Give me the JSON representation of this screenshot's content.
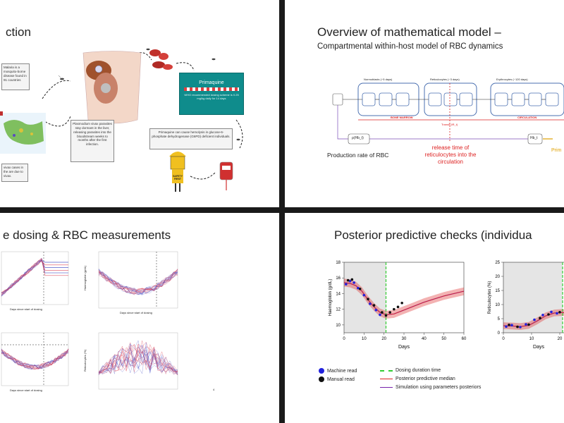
{
  "slide1": {
    "title": "ction",
    "box_malaria": "Malaria is a mosquito-borne disease found in 91 countries",
    "box_plasmodium": "Plasmodium vivax parasites stay dormant in the liver, releasing parasites into the bloodstream weeks to months after the first infection.",
    "box_cases": "vivax cases in the are due to vivax.",
    "primaquine_label": "Primaquine",
    "primaquine_desc": "WHO recommended dosing scheme is 0.25 mg/kg daily for 14 days",
    "box_g6pd": "Primaquine can cause hemolysis in glucose-6-phosphate dehydrogenase (G6PD) deficient individuals.",
    "safety_text": "SAFETY FIRST"
  },
  "slide2": {
    "title": "Overview of mathematical model –",
    "subtitle": "Compartmental within-host model of RBC dynamics",
    "normoblasts": "Normoblasts (~5 days)",
    "reticulocytes": "Reticulocytes (~3 days)",
    "erythrocytes": "Erythrocytes (~120 days)",
    "bone_marrow": "BONE MARROW",
    "circulation": "CIRCULATION",
    "transit": "Transit (tR_t)",
    "prod_node": "ρ(Hb_t)",
    "hb_node": "Hb_t",
    "production_rate": "Production rate of RBC",
    "release_note": "release time of reticulocytes into the circulation",
    "prima_note": "Prim"
  },
  "slide3": {
    "title": "e dosing & RBC measurements",
    "xlabel_a": "Days since start of dosing",
    "xlabel_b": "Days since start of dosing",
    "xlabel_c": "Days since start of dosing",
    "ylabel_b": "Haemoglobin (g/dL)",
    "ylabel_d": "Reticulocytes (%)",
    "page_num": "4"
  },
  "slide4": {
    "title": "Posterior predictive checks (individua",
    "legend": {
      "machine": "Machine read",
      "manual": "Manual read",
      "dosing": "Dosing duration time",
      "median": "Posterior predictive median",
      "simulation": "Simulation using parameters posteriors"
    },
    "colors": {
      "machine": "#2222dd",
      "manual": "#111111",
      "dosing": "#33cc33",
      "median": "#dd2222",
      "simulation": "#7722aa"
    }
  },
  "chart_data": [
    {
      "type": "line",
      "ylabel": "Haemoglobin (g/dL)",
      "xlabel": "Days",
      "x_ticks": [
        "0",
        "10",
        "20",
        "30",
        "40",
        "50",
        "60"
      ],
      "y_ticks": [
        "10",
        "12",
        "14",
        "16",
        "18"
      ],
      "xlim": [
        0,
        60
      ],
      "ylim": [
        9,
        18
      ],
      "dosing_end": 21,
      "median": {
        "x": [
          0,
          3,
          6,
          9,
          12,
          15,
          18,
          21,
          25,
          30,
          35,
          40,
          45,
          50,
          55,
          60
        ],
        "y": [
          15.4,
          15.3,
          15.0,
          14.3,
          13.2,
          12.3,
          11.6,
          11.3,
          11.4,
          11.9,
          12.4,
          12.9,
          13.3,
          13.7,
          14.0,
          14.3
        ]
      },
      "band_width": 0.5,
      "machine": {
        "x": [
          1,
          3,
          5,
          7,
          10,
          13,
          16,
          18
        ],
        "y": [
          15.2,
          15.6,
          15.4,
          14.7,
          13.8,
          12.7,
          11.9,
          11.3
        ]
      },
      "manual": {
        "x": [
          2,
          4,
          8,
          12,
          15,
          19,
          21,
          23,
          25,
          27,
          29
        ],
        "y": [
          15.7,
          15.8,
          14.6,
          13.3,
          12.5,
          11.6,
          11.2,
          11.6,
          12.0,
          12.3,
          12.8
        ]
      }
    },
    {
      "type": "line",
      "ylabel": "Reticulocytes (%)",
      "xlabel": "Days",
      "x_ticks": [
        "0",
        "10",
        "20"
      ],
      "y_ticks": [
        "0",
        "5",
        "10",
        "15",
        "20",
        "25"
      ],
      "xlim": [
        0,
        25
      ],
      "ylim": [
        0,
        25
      ],
      "dosing_end": 21,
      "median": {
        "x": [
          0,
          3,
          6,
          9,
          12,
          15,
          18,
          21,
          23,
          25
        ],
        "y": [
          2.5,
          2.4,
          2.2,
          2.6,
          4.2,
          6.0,
          7.0,
          7.2,
          6.8,
          6.0
        ]
      },
      "band_width": 1.2,
      "machine": {
        "x": [
          1,
          3,
          6,
          8,
          11,
          14,
          17,
          19
        ],
        "y": [
          2.2,
          2.7,
          2.0,
          3.0,
          4.6,
          6.3,
          7.4,
          6.9
        ]
      },
      "manual": {
        "x": [
          2,
          5,
          9,
          13,
          16,
          20,
          22
        ],
        "y": [
          2.8,
          2.1,
          2.9,
          5.2,
          6.5,
          7.3,
          4.6
        ]
      }
    }
  ]
}
